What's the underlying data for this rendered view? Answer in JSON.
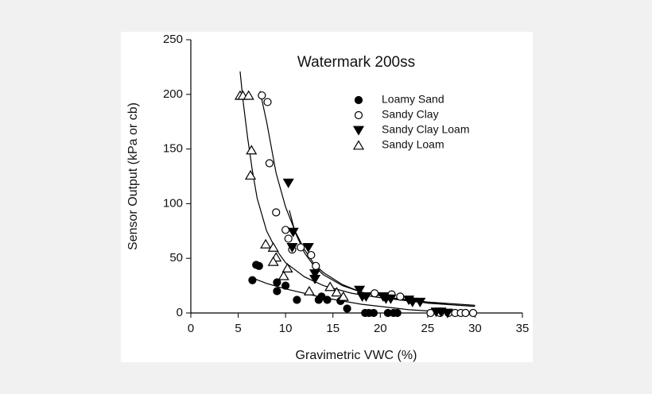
{
  "chart_data": {
    "type": "scatter",
    "title": "Watermark 200ss",
    "x_label": "Gravimetric VWC (%)",
    "y_label": "Sensor Output (kPa or cb)",
    "xlim": [
      0,
      35
    ],
    "xticks": [
      0,
      5,
      10,
      15,
      20,
      25,
      30,
      35
    ],
    "ylim": [
      0,
      250
    ],
    "yticks": [
      0,
      50,
      100,
      150,
      200,
      250
    ],
    "series": [
      {
        "name": "Loamy Sand",
        "color": "#000000",
        "marker": "circle",
        "filled": true,
        "x": [
          6.5,
          6.9,
          7.2,
          9.1,
          9.1,
          10.0,
          11.2,
          13.5,
          13.8,
          14.4,
          15.8,
          16.5,
          18.4,
          18.8,
          19.3,
          20.8,
          21.4,
          21.8
        ],
        "values": [
          30,
          44,
          43,
          28,
          20,
          25,
          12,
          12,
          15,
          12,
          11,
          4,
          0,
          0,
          0,
          0,
          0,
          0
        ]
      },
      {
        "name": "Sandy Clay",
        "color": "#000000",
        "marker": "circle",
        "filled": false,
        "x": [
          7.5,
          8.1,
          8.3,
          9.0,
          10.0,
          10.3,
          10.7,
          11.6,
          12.7,
          13.2,
          19.4,
          21.2,
          22.1,
          23.2,
          25.3,
          26.3,
          27.2,
          27.9,
          28.5,
          29.0,
          29.8
        ],
        "values": [
          199,
          193,
          137,
          92,
          76,
          68,
          58,
          60,
          53,
          43,
          18,
          17,
          15,
          12,
          0,
          0,
          0,
          0,
          0,
          0,
          0
        ]
      },
      {
        "name": "Sandy Clay Loam",
        "color": "#000000",
        "marker": "triangle-down",
        "filled": true,
        "x": [
          10.3,
          10.8,
          10.7,
          12.4,
          13.1,
          13.1,
          17.8,
          18.1,
          18.5,
          20.3,
          20.6,
          21.1,
          23.0,
          23.4,
          24.2,
          25.9,
          26.4,
          27.1
        ],
        "values": [
          119,
          74,
          60,
          60,
          36,
          31,
          21,
          15,
          15,
          15,
          13,
          13,
          12,
          10,
          10,
          1,
          1,
          0
        ]
      },
      {
        "name": "Sandy Loam",
        "color": "#000000",
        "marker": "triangle-up",
        "filled": false,
        "x": [
          5.2,
          5.5,
          6.1,
          6.4,
          6.3,
          7.9,
          8.7,
          9.0,
          8.7,
          10.2,
          9.8,
          12.5,
          14.7,
          15.4,
          16.1
        ],
        "values": [
          199,
          199,
          199,
          149,
          126,
          63,
          60,
          51,
          47,
          41,
          34,
          20,
          24,
          19,
          15
        ]
      }
    ],
    "fit_lines": [
      {
        "color": "#000000",
        "x": [
          5.2,
          5.5,
          6,
          6.5,
          7,
          8,
          9,
          10,
          12,
          14,
          17,
          20,
          24,
          27
        ],
        "values": [
          221,
          195,
          160,
          130,
          105,
          75,
          58,
          46,
          33,
          25,
          18,
          14,
          10,
          8
        ]
      },
      {
        "color": "#000000",
        "x": [
          7.3,
          8,
          9,
          10,
          11,
          12,
          13,
          14,
          16,
          18,
          21,
          25,
          30
        ],
        "values": [
          203,
          175,
          128,
          97,
          75,
          58,
          45,
          37,
          26,
          19,
          14,
          9,
          6
        ]
      },
      {
        "color": "#000000",
        "x": [
          10.4,
          11,
          12,
          13,
          14,
          16,
          18,
          21,
          25,
          30
        ],
        "values": [
          94,
          74,
          55,
          43,
          35,
          25,
          19,
          14,
          10,
          7
        ]
      },
      {
        "color": "#000000",
        "x": [
          6.5,
          8,
          10,
          12,
          14,
          16,
          18,
          20,
          23,
          26.7
        ],
        "values": [
          32,
          27,
          22,
          18,
          14,
          11,
          8,
          6,
          3,
          1
        ]
      }
    ]
  }
}
